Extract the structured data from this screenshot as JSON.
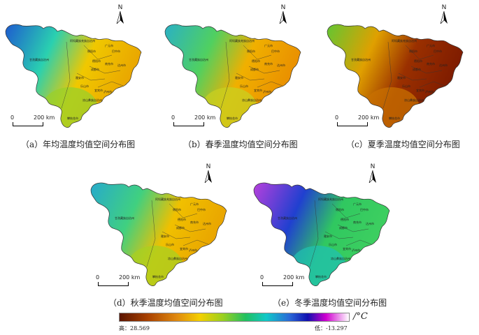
{
  "panels": [
    {
      "id": "a",
      "caption": "（a）年均温度均值空间分布图",
      "scale_zero": "0",
      "scale_dist": "200 km",
      "north": "N",
      "colors": {
        "west": "#1a3bd8",
        "mid": "#2ad0b0",
        "east": "#f0c800",
        "southeast": "#e8a000",
        "south": "#9ad02a"
      }
    },
    {
      "id": "b",
      "caption": "（b）春季温度均值空间分布图",
      "scale_zero": "0",
      "scale_dist": "200 km",
      "north": "N",
      "colors": {
        "west": "#20a8e0",
        "mid": "#50d060",
        "east": "#f0b000",
        "southeast": "#e88a00",
        "south": "#c8d020"
      }
    },
    {
      "id": "c",
      "caption": "（c）夏季温度均值空间分布图",
      "scale_zero": "0",
      "scale_dist": "200 km",
      "north": "N",
      "colors": {
        "west": "#40d040",
        "mid": "#e0a000",
        "east": "#9a3000",
        "southeast": "#7a1800",
        "south": "#c87000"
      }
    },
    {
      "id": "d",
      "caption": "（d）秋季温度均值空间分布图",
      "scale_zero": "0",
      "scale_dist": "200 km",
      "north": "N",
      "colors": {
        "west": "#20a0e0",
        "mid": "#40d080",
        "east": "#f0c000",
        "southeast": "#e8a000",
        "south": "#a8d020"
      }
    },
    {
      "id": "e",
      "caption": "（e）冬季温度均值空间分布图",
      "scale_zero": "0",
      "scale_dist": "200 km",
      "north": "N",
      "colors": {
        "west": "#e040e0",
        "mid": "#2040d0",
        "east": "#30c860",
        "southeast": "#40d060",
        "south": "#20c0b0"
      }
    }
  ],
  "place_labels": [
    "阿坝藏族羌族自治州",
    "甘孜藏族自治州",
    "凉山彝族自治州",
    "成都市",
    "绵阳市",
    "广元市",
    "巴中市",
    "达州市",
    "南充市",
    "德阳市",
    "雅安市",
    "乐山市",
    "宜宾市",
    "泸州市",
    "攀枝花市"
  ],
  "legend": {
    "unit": "/°C",
    "high_label": "高：28.569",
    "low_label": "低：-13.297",
    "high_value": 28.569,
    "low_value": -13.297
  }
}
